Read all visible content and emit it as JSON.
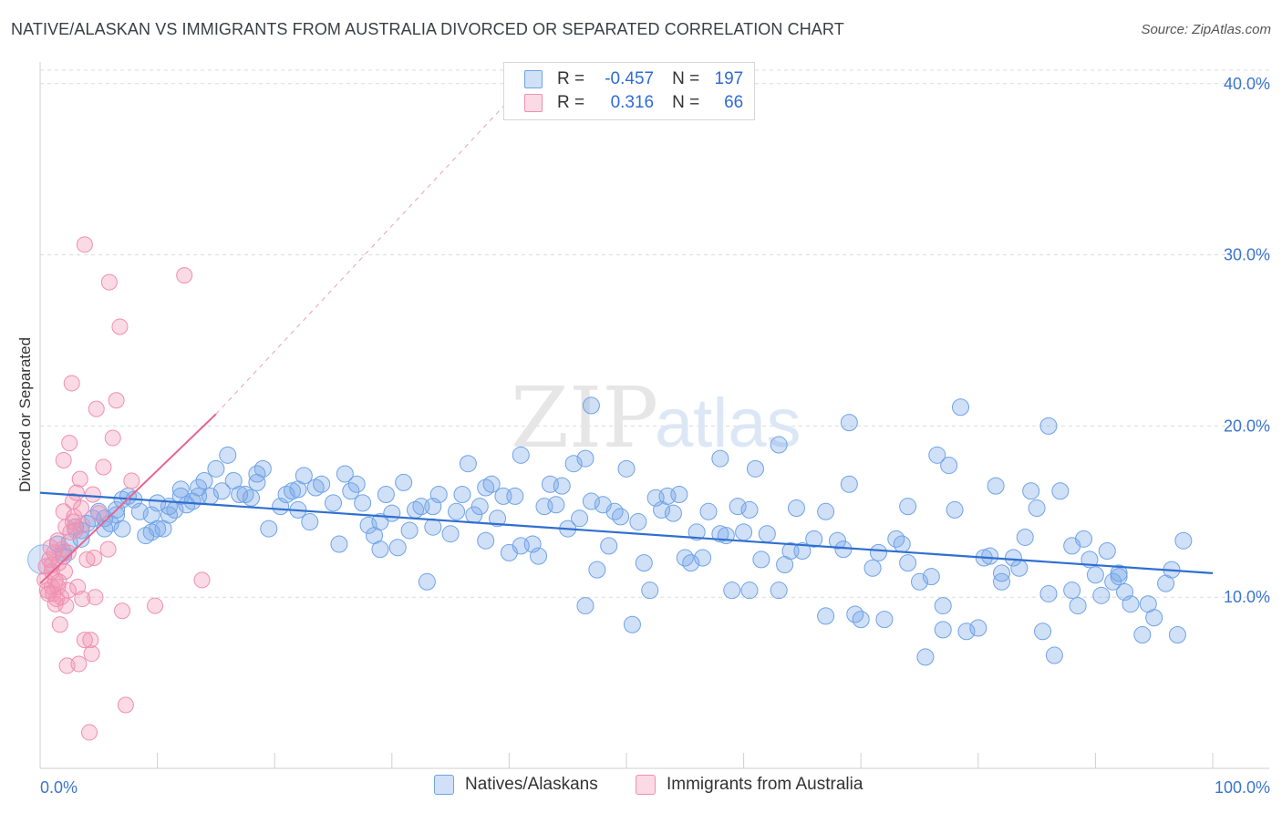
{
  "title": "NATIVE/ALASKAN VS IMMIGRANTS FROM AUSTRALIA DIVORCED OR SEPARATED CORRELATION CHART",
  "source": "Source: ZipAtlas.com",
  "watermark": {
    "zip": "ZIP",
    "atlas": "atlas"
  },
  "legend": {
    "rows": [
      {
        "r_label": "R =",
        "r_value": "-0.457",
        "n_label": "N =",
        "n_value": "197",
        "color": "#6fa3e8"
      },
      {
        "r_label": "R =",
        "r_value": "0.316",
        "n_label": "N =",
        "n_value": "66",
        "color": "#f08fb0"
      }
    ]
  },
  "bottom_legend": [
    {
      "label": "Natives/Alaskans",
      "color": "#6fa3e8"
    },
    {
      "label": "Immigrants from Australia",
      "color": "#f08fb0"
    }
  ],
  "colors": {
    "blue_fill": "rgba(120,165,232,0.35)",
    "blue_stroke": "#6fa3e8",
    "blue_line": "#2f6fd0",
    "pink_fill": "rgba(242,150,180,0.35)",
    "pink_stroke": "#f08fb0",
    "pink_line": "#e8648f",
    "axis_text": "#3b74d1"
  },
  "chart_data": {
    "type": "scatter",
    "title": "NATIVE/ALASKAN VS IMMIGRANTS FROM AUSTRALIA DIVORCED OR SEPARATED CORRELATION CHART",
    "xlabel": "",
    "ylabel": "Divorced or Separated",
    "xlim": [
      0,
      100
    ],
    "ylim": [
      0,
      41
    ],
    "x_tick_labels": [
      "0.0%",
      "100.0%"
    ],
    "y_ticks": [
      10,
      20,
      30,
      40
    ],
    "y_tick_labels": [
      "10.0%",
      "20.0%",
      "30.0%",
      "40.0%"
    ],
    "grid": true,
    "legend_position": "top-center",
    "series": [
      {
        "name": "Natives/Alaskans",
        "r": -0.457,
        "n": 197,
        "trend": {
          "x": [
            0,
            100
          ],
          "y": [
            16.1,
            11.4
          ]
        },
        "points": [
          [
            1.5,
            13.1
          ],
          [
            2.0,
            12.6
          ],
          [
            2.5,
            13.2
          ],
          [
            3.0,
            14.1
          ],
          [
            3.5,
            13.9
          ],
          [
            4.0,
            14.3
          ],
          [
            4.5,
            14.6
          ],
          [
            5.0,
            15.0
          ],
          [
            5.5,
            14.6
          ],
          [
            6.0,
            14.3
          ],
          [
            6.5,
            15.1
          ],
          [
            7.0,
            14.0
          ],
          [
            7.5,
            15.9
          ],
          [
            8.0,
            15.7
          ],
          [
            8.5,
            15.0
          ],
          [
            9.0,
            13.6
          ],
          [
            9.5,
            13.8
          ],
          [
            10.0,
            15.5
          ],
          [
            10.5,
            14.0
          ],
          [
            11.0,
            14.8
          ],
          [
            11.5,
            15.1
          ],
          [
            12.0,
            16.3
          ],
          [
            12.5,
            15.4
          ],
          [
            13.0,
            15.6
          ],
          [
            13.5,
            16.4
          ],
          [
            14.0,
            16.8
          ],
          [
            14.5,
            15.9
          ],
          [
            15.0,
            17.5
          ],
          [
            15.5,
            16.2
          ],
          [
            16.0,
            18.3
          ],
          [
            16.5,
            16.8
          ],
          [
            17.0,
            16.0
          ],
          [
            17.5,
            16.0
          ],
          [
            18.0,
            15.8
          ],
          [
            18.5,
            16.7
          ],
          [
            19.0,
            17.5
          ],
          [
            19.5,
            14.0
          ],
          [
            20.5,
            15.3
          ],
          [
            21.0,
            16.0
          ],
          [
            21.5,
            16.2
          ],
          [
            22.0,
            16.3
          ],
          [
            22.5,
            17.1
          ],
          [
            23.0,
            14.4
          ],
          [
            23.5,
            16.4
          ],
          [
            24.0,
            16.6
          ],
          [
            25.0,
            15.5
          ],
          [
            25.5,
            13.1
          ],
          [
            26.0,
            17.2
          ],
          [
            26.5,
            16.2
          ],
          [
            27.0,
            16.6
          ],
          [
            28.0,
            14.2
          ],
          [
            28.5,
            13.6
          ],
          [
            29.0,
            12.8
          ],
          [
            29.5,
            16.0
          ],
          [
            30.0,
            14.9
          ],
          [
            30.5,
            12.9
          ],
          [
            31.0,
            16.7
          ],
          [
            31.5,
            13.9
          ],
          [
            32.0,
            15.1
          ],
          [
            32.5,
            15.3
          ],
          [
            33.0,
            10.9
          ],
          [
            33.5,
            14.1
          ],
          [
            34.0,
            16.0
          ],
          [
            35.0,
            13.7
          ],
          [
            35.5,
            15.0
          ],
          [
            36.0,
            16.0
          ],
          [
            36.5,
            17.8
          ],
          [
            37.0,
            14.8
          ],
          [
            37.5,
            15.3
          ],
          [
            38.0,
            16.4
          ],
          [
            38.5,
            16.6
          ],
          [
            39.0,
            14.6
          ],
          [
            39.5,
            15.9
          ],
          [
            40.0,
            12.6
          ],
          [
            40.5,
            15.9
          ],
          [
            41.0,
            18.3
          ],
          [
            42.0,
            13.1
          ],
          [
            42.5,
            12.4
          ],
          [
            43.0,
            15.3
          ],
          [
            43.5,
            16.6
          ],
          [
            44.0,
            15.4
          ],
          [
            45.0,
            14.0
          ],
          [
            45.5,
            17.8
          ],
          [
            46.0,
            14.6
          ],
          [
            46.5,
            9.5
          ],
          [
            46.5,
            18.1
          ],
          [
            47.0,
            15.6
          ],
          [
            47.5,
            11.6
          ],
          [
            48.0,
            15.4
          ],
          [
            48.5,
            13.0
          ],
          [
            49.0,
            15.0
          ],
          [
            49.5,
            14.7
          ],
          [
            50.0,
            17.5
          ],
          [
            50.5,
            8.4
          ],
          [
            51.0,
            14.4
          ],
          [
            51.5,
            12.0
          ],
          [
            52.0,
            10.4
          ],
          [
            53.0,
            15.1
          ],
          [
            53.5,
            15.9
          ],
          [
            54.0,
            14.9
          ],
          [
            54.5,
            16.0
          ],
          [
            55.0,
            12.3
          ],
          [
            55.5,
            12.0
          ],
          [
            56.0,
            13.8
          ],
          [
            56.5,
            12.3
          ],
          [
            57.0,
            15.0
          ],
          [
            58.0,
            13.7
          ],
          [
            58.5,
            13.6
          ],
          [
            59.0,
            10.4
          ],
          [
            59.5,
            15.3
          ],
          [
            60.0,
            13.8
          ],
          [
            60.5,
            15.1
          ],
          [
            61.0,
            17.5
          ],
          [
            61.5,
            12.2
          ],
          [
            62.0,
            13.7
          ],
          [
            63.0,
            10.4
          ],
          [
            63.5,
            11.9
          ],
          [
            64.0,
            12.7
          ],
          [
            64.5,
            15.2
          ],
          [
            65.0,
            12.7
          ],
          [
            66.0,
            13.4
          ],
          [
            67.0,
            8.9
          ],
          [
            68.0,
            13.3
          ],
          [
            68.5,
            12.8
          ],
          [
            69.0,
            16.6
          ],
          [
            69.5,
            9.0
          ],
          [
            70.0,
            8.7
          ],
          [
            71.0,
            11.7
          ],
          [
            71.5,
            12.6
          ],
          [
            72.0,
            8.7
          ],
          [
            73.0,
            13.4
          ],
          [
            73.5,
            13.1
          ],
          [
            74.0,
            12.0
          ],
          [
            75.0,
            10.9
          ],
          [
            75.5,
            6.5
          ],
          [
            76.0,
            11.2
          ],
          [
            76.5,
            18.3
          ],
          [
            77.0,
            8.1
          ],
          [
            77.5,
            17.7
          ],
          [
            78.0,
            15.1
          ],
          [
            78.5,
            21.1
          ],
          [
            79.0,
            8.0
          ],
          [
            80.0,
            8.2
          ],
          [
            81.0,
            12.4
          ],
          [
            81.5,
            16.5
          ],
          [
            82.0,
            10.9
          ],
          [
            83.0,
            12.3
          ],
          [
            83.5,
            11.7
          ],
          [
            84.0,
            13.5
          ],
          [
            84.5,
            16.2
          ],
          [
            85.0,
            15.2
          ],
          [
            85.5,
            8.0
          ],
          [
            86.0,
            10.2
          ],
          [
            86.5,
            6.6
          ],
          [
            87.0,
            16.2
          ],
          [
            88.0,
            10.4
          ],
          [
            88.5,
            9.5
          ],
          [
            89.0,
            13.4
          ],
          [
            89.5,
            12.2
          ],
          [
            90.0,
            11.3
          ],
          [
            90.5,
            10.1
          ],
          [
            91.0,
            12.7
          ],
          [
            91.5,
            10.9
          ],
          [
            92.0,
            11.2
          ],
          [
            92.5,
            10.3
          ],
          [
            93.0,
            9.6
          ],
          [
            94.0,
            7.8
          ],
          [
            94.5,
            9.6
          ],
          [
            95.0,
            8.8
          ],
          [
            96.0,
            10.8
          ],
          [
            97.0,
            7.8
          ],
          [
            97.5,
            13.3
          ],
          [
            6.5,
            14.8
          ],
          [
            10.0,
            14.0
          ],
          [
            18.5,
            17.2
          ],
          [
            27.5,
            15.5
          ],
          [
            44.5,
            16.5
          ],
          [
            52.5,
            15.8
          ],
          [
            60.5,
            10.4
          ],
          [
            63.0,
            18.9
          ],
          [
            69.0,
            20.2
          ],
          [
            77.0,
            9.5
          ],
          [
            82.0,
            11.4
          ],
          [
            86.0,
            20.0
          ],
          [
            92.0,
            11.4
          ],
          [
            96.5,
            11.6
          ],
          [
            47.0,
            21.2
          ],
          [
            38.0,
            13.3
          ],
          [
            33.5,
            15.3
          ],
          [
            22.0,
            15.1
          ],
          [
            29.0,
            14.4
          ],
          [
            41.0,
            13.0
          ],
          [
            58.0,
            18.1
          ],
          [
            67.0,
            15.0
          ],
          [
            74.0,
            15.3
          ],
          [
            80.5,
            12.3
          ],
          [
            88.0,
            13.0
          ],
          [
            2.0,
            12.4
          ],
          [
            3.5,
            13.4
          ],
          [
            5.5,
            14.0
          ],
          [
            7.0,
            15.7
          ],
          [
            9.5,
            14.8
          ],
          [
            11.0,
            15.3
          ],
          [
            12.0,
            15.9
          ],
          [
            13.5,
            15.9
          ]
        ]
      },
      {
        "name": "Immigrants from Australia",
        "r": 0.316,
        "n": 66,
        "trend": {
          "x": [
            0,
            15
          ],
          "y": [
            10.8,
            20.7
          ]
        },
        "trend_dashed_to": {
          "x": 42,
          "y": 40.5
        },
        "points": [
          [
            0.4,
            11.0
          ],
          [
            0.5,
            11.8
          ],
          [
            0.6,
            10.4
          ],
          [
            0.8,
            12.2
          ],
          [
            1.0,
            10.6
          ],
          [
            1.0,
            11.5
          ],
          [
            1.1,
            10.2
          ],
          [
            1.2,
            12.6
          ],
          [
            1.3,
            11.0
          ],
          [
            1.4,
            9.9
          ],
          [
            1.5,
            10.6
          ],
          [
            1.6,
            12.0
          ],
          [
            1.7,
            8.4
          ],
          [
            1.8,
            10.0
          ],
          [
            1.9,
            12.8
          ],
          [
            2.0,
            15.0
          ],
          [
            2.0,
            18.0
          ],
          [
            2.1,
            11.5
          ],
          [
            2.2,
            14.1
          ],
          [
            2.3,
            6.0
          ],
          [
            2.4,
            12.6
          ],
          [
            2.5,
            19.0
          ],
          [
            2.6,
            13.8
          ],
          [
            2.7,
            22.5
          ],
          [
            2.8,
            15.6
          ],
          [
            2.9,
            14.7
          ],
          [
            3.0,
            13.9
          ],
          [
            3.1,
            16.1
          ],
          [
            3.2,
            10.6
          ],
          [
            3.3,
            6.1
          ],
          [
            3.4,
            16.9
          ],
          [
            3.5,
            15.2
          ],
          [
            3.6,
            14.2
          ],
          [
            3.8,
            7.5
          ],
          [
            3.8,
            30.6
          ],
          [
            4.0,
            12.2
          ],
          [
            4.2,
            2.1
          ],
          [
            4.3,
            7.5
          ],
          [
            4.4,
            6.7
          ],
          [
            4.5,
            16.0
          ],
          [
            4.6,
            12.3
          ],
          [
            4.7,
            10.0
          ],
          [
            4.8,
            21.0
          ],
          [
            5.0,
            14.9
          ],
          [
            5.4,
            17.6
          ],
          [
            5.8,
            12.8
          ],
          [
            5.9,
            28.4
          ],
          [
            6.2,
            19.3
          ],
          [
            6.5,
            21.5
          ],
          [
            6.8,
            25.8
          ],
          [
            7.0,
            9.2
          ],
          [
            7.3,
            3.7
          ],
          [
            7.8,
            16.8
          ],
          [
            9.8,
            9.5
          ],
          [
            12.3,
            28.8
          ],
          [
            13.8,
            11.0
          ],
          [
            0.7,
            10.2
          ],
          [
            1.0,
            11.9
          ],
          [
            1.3,
            9.6
          ],
          [
            1.6,
            10.9
          ],
          [
            2.2,
            9.5
          ],
          [
            2.4,
            10.4
          ],
          [
            2.8,
            14.4
          ],
          [
            3.6,
            9.9
          ],
          [
            0.9,
            12.9
          ],
          [
            1.5,
            13.3
          ]
        ]
      }
    ]
  }
}
